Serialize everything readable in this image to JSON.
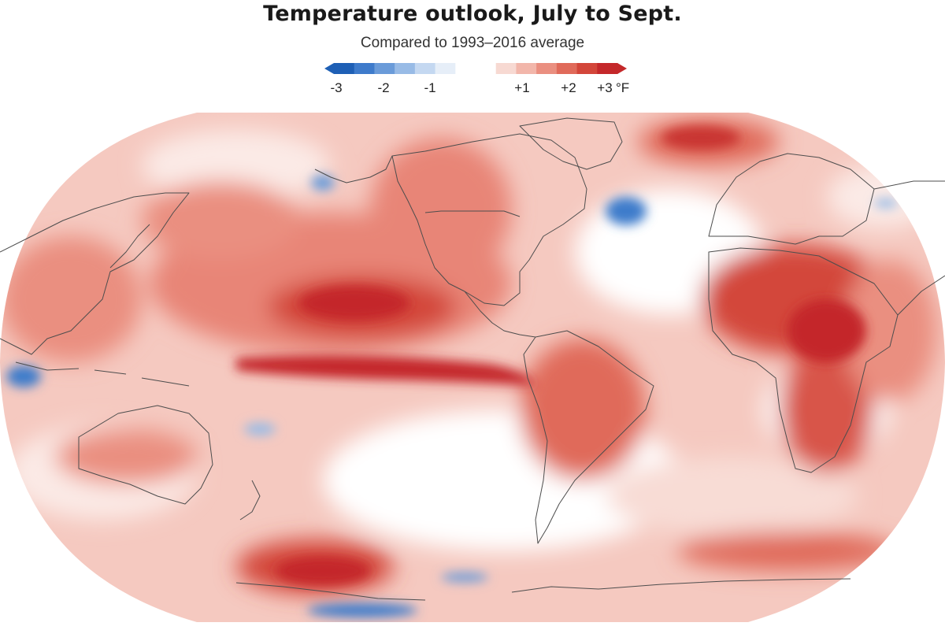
{
  "header": {
    "title": "Temperature outlook, July to Sept.",
    "subtitle": "Compared to 1993–2016 average"
  },
  "legend": {
    "unit": "°F",
    "ticks": [
      "-3",
      "-2",
      "-1",
      "+1",
      "+2",
      "+3"
    ],
    "colors": [
      "#1e5fb5",
      "#3e7bcb",
      "#6a9bd9",
      "#98bbe6",
      "#c4d8f1",
      "#e6eef8",
      "#ffffff",
      "#ffffff",
      "#f7d9d2",
      "#f2b6aa",
      "#ea8f80",
      "#e06a5a",
      "#d3463a",
      "#c4282a"
    ]
  },
  "colors": {
    "coast": "#4d4d4d",
    "warm_strong": "#c4282a",
    "warm": "#e06a5a",
    "warm_light": "#f2b6aa",
    "cool": "#3e7bcb"
  }
}
